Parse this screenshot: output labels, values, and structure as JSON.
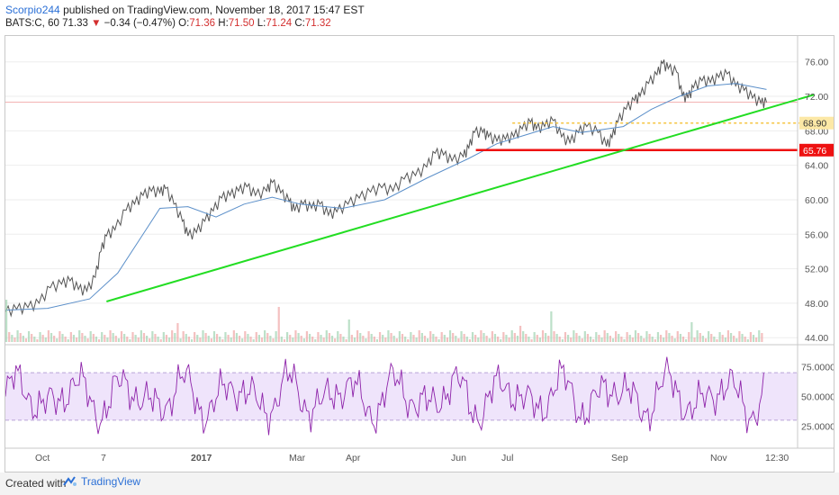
{
  "header": {
    "author": "Scorpio244",
    "published_text": "published on TradingView.com, November 18, 2017 15:47 EST",
    "symbol": "BATS:C, 60",
    "last": "71.33",
    "change": "−0.34 (−0.47%)",
    "open_label": "O:",
    "open": "71.36",
    "high_label": "H:",
    "high": "71.50",
    "low_label": "L:",
    "low": "71.24",
    "close_label": "C:",
    "close": "71.32"
  },
  "footer": {
    "created_with": "Created with",
    "brand": "TradingView"
  },
  "colors": {
    "trendline": "#22dd22",
    "support": "#ee1111",
    "resistance_dotted": "#f5c542",
    "moving_average": "#5b8fc9",
    "rsi_line": "#8e24aa",
    "rsi_band": "#efe4fb"
  },
  "chart_data": [
    {
      "type": "line",
      "panel": "price",
      "x_ticks": [
        "Oct",
        "7",
        "2017",
        "Mar",
        "Apr",
        "Jun",
        "Jul",
        "Sep",
        "Nov",
        "12:30"
      ],
      "y_ticks": [
        "76.00",
        "72.00",
        "68.00",
        "64.00",
        "60.00",
        "56.00",
        "52.00",
        "48.00",
        "44.00"
      ],
      "ylim": [
        43.5,
        79
      ],
      "price_path": [
        [
          0,
          47.0
        ],
        [
          8,
          47.3
        ],
        [
          16,
          47.5
        ],
        [
          24,
          48.0
        ],
        [
          32,
          49.8
        ],
        [
          40,
          50.2
        ],
        [
          46,
          50.6
        ],
        [
          52,
          49.6
        ],
        [
          58,
          49.4
        ],
        [
          64,
          51.0
        ],
        [
          68,
          54.0
        ],
        [
          72,
          55.8
        ],
        [
          78,
          56.5
        ],
        [
          86,
          58.8
        ],
        [
          92,
          59.5
        ],
        [
          98,
          60.5
        ],
        [
          104,
          61.0
        ],
        [
          110,
          60.8
        ],
        [
          114,
          61.3
        ],
        [
          120,
          59.5
        ],
        [
          126,
          57.5
        ],
        [
          130,
          55.8
        ],
        [
          136,
          56.2
        ],
        [
          142,
          57.5
        ],
        [
          148,
          58.7
        ],
        [
          154,
          60.2
        ],
        [
          160,
          60.5
        ],
        [
          166,
          61.0
        ],
        [
          172,
          61.5
        ],
        [
          178,
          60.5
        ],
        [
          186,
          61.0
        ],
        [
          190,
          62.0
        ],
        [
          196,
          60.8
        ],
        [
          202,
          59.8
        ],
        [
          206,
          58.7
        ],
        [
          212,
          59.5
        ],
        [
          218,
          59.0
        ],
        [
          224,
          59.5
        ],
        [
          230,
          58.2
        ],
        [
          236,
          58.6
        ],
        [
          244,
          59.5
        ],
        [
          252,
          60.2
        ],
        [
          260,
          60.9
        ],
        [
          268,
          61.4
        ],
        [
          276,
          61.0
        ],
        [
          284,
          62.4
        ],
        [
          292,
          62.8
        ],
        [
          300,
          63.8
        ],
        [
          306,
          65.4
        ],
        [
          312,
          65.2
        ],
        [
          318,
          64.5
        ],
        [
          326,
          65.0
        ],
        [
          330,
          66.0
        ],
        [
          334,
          67.8
        ],
        [
          340,
          67.8
        ],
        [
          344,
          67.3
        ],
        [
          350,
          66.8
        ],
        [
          356,
          67.0
        ],
        [
          362,
          67.3
        ],
        [
          368,
          68.2
        ],
        [
          374,
          69.0
        ],
        [
          378,
          68.2
        ],
        [
          384,
          68.5
        ],
        [
          390,
          69.2
        ],
        [
          396,
          67.3
        ],
        [
          402,
          66.6
        ],
        [
          408,
          67.8
        ],
        [
          414,
          68.5
        ],
        [
          422,
          67.8
        ],
        [
          428,
          66.2
        ],
        [
          432,
          67.2
        ],
        [
          436,
          69.0
        ],
        [
          442,
          70.5
        ],
        [
          448,
          71.5
        ],
        [
          452,
          72.0
        ],
        [
          458,
          73.5
        ],
        [
          464,
          74.5
        ],
        [
          468,
          75.8
        ],
        [
          472,
          75.2
        ],
        [
          478,
          74.8
        ],
        [
          482,
          72.0
        ],
        [
          486,
          71.8
        ],
        [
          490,
          73.0
        ],
        [
          496,
          73.8
        ],
        [
          502,
          73.6
        ],
        [
          508,
          74.2
        ],
        [
          514,
          74.6
        ],
        [
          520,
          73.2
        ],
        [
          526,
          72.7
        ],
        [
          532,
          71.8
        ],
        [
          538,
          71.2
        ],
        [
          542,
          71.3
        ]
      ],
      "ma_path": [
        [
          0,
          47.2
        ],
        [
          30,
          47.4
        ],
        [
          60,
          48.5
        ],
        [
          80,
          51.5
        ],
        [
          100,
          56.5
        ],
        [
          110,
          59.0
        ],
        [
          130,
          59.2
        ],
        [
          150,
          58.0
        ],
        [
          170,
          59.5
        ],
        [
          190,
          60.3
        ],
        [
          210,
          59.5
        ],
        [
          240,
          59.0
        ],
        [
          270,
          60.0
        ],
        [
          300,
          62.5
        ],
        [
          330,
          64.8
        ],
        [
          350,
          66.5
        ],
        [
          370,
          67.5
        ],
        [
          390,
          68.5
        ],
        [
          410,
          67.8
        ],
        [
          440,
          68.5
        ],
        [
          460,
          70.5
        ],
        [
          480,
          72.0
        ],
        [
          500,
          73.2
        ],
        [
          520,
          73.5
        ],
        [
          542,
          72.8
        ]
      ],
      "trendline": [
        [
          72,
          48.2
        ],
        [
          576,
          72.2
        ]
      ],
      "support_line": [
        [
          335,
          65.76
        ],
        [
          602,
          65.76
        ]
      ],
      "resistance_line": [
        [
          361,
          68.9
        ],
        [
          580,
          68.9
        ]
      ],
      "hline_last": 71.33,
      "price_labels": [
        "68.90",
        "65.76"
      ],
      "ma_label": ""
    },
    {
      "type": "line",
      "panel": "rsi",
      "y_ticks": [
        "75.0000",
        "50.0000",
        "25.0000"
      ],
      "ylim": [
        8,
        92
      ],
      "band": [
        30,
        70
      ]
    }
  ]
}
